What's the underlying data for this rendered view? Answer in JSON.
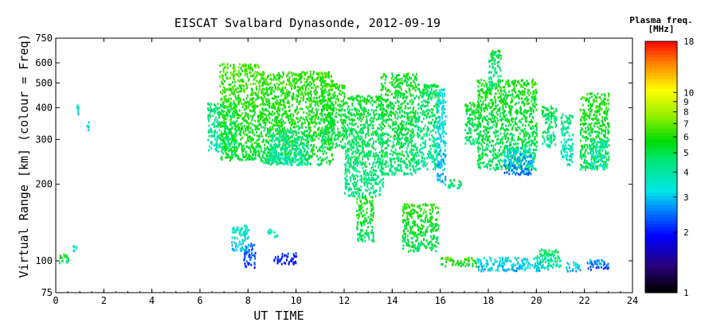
{
  "chart_data": {
    "type": "scatter",
    "title": "EISCAT Svalbard Dynasonde, 2012-09-19",
    "xlabel": "UT TIME",
    "ylabel": "Virtual Range [km] (colour = Freq)",
    "xlim": [
      0,
      24
    ],
    "ylim": [
      75,
      750
    ],
    "y_scale": "log",
    "x_ticks": [
      0,
      2,
      4,
      6,
      8,
      10,
      12,
      14,
      16,
      18,
      20,
      22,
      24
    ],
    "y_ticks": [
      75,
      100,
      200,
      300,
      400,
      500,
      600,
      750
    ],
    "colorbar": {
      "title_line1": "Plasma freq.",
      "title_line2": "[MHz]",
      "range": [
        1,
        18
      ],
      "scale": "log",
      "ticks": [
        1,
        2,
        3,
        4,
        5,
        6,
        7,
        8,
        9,
        10,
        18
      ]
    },
    "clusters": [
      {
        "t0": 0.05,
        "t1": 0.5,
        "r0": 98,
        "r1": 108,
        "f": 4.5
      },
      {
        "t0": 0.85,
        "t1": 0.95,
        "r0": 365,
        "r1": 420,
        "f": 3.0
      },
      {
        "t0": 1.25,
        "t1": 1.35,
        "r0": 330,
        "r1": 360,
        "f": 3.0
      },
      {
        "t0": 0.7,
        "t1": 0.85,
        "r0": 110,
        "r1": 118,
        "f": 3.3
      },
      {
        "t0": 6.3,
        "t1": 7.5,
        "r0": 270,
        "r1": 420,
        "f": 3.8
      },
      {
        "t0": 6.8,
        "t1": 8.5,
        "r0": 250,
        "r1": 600,
        "f": 5.2
      },
      {
        "t0": 7.3,
        "t1": 8.0,
        "r0": 110,
        "r1": 140,
        "f": 3.0
      },
      {
        "t0": 7.8,
        "t1": 8.3,
        "r0": 95,
        "r1": 118,
        "f": 2.0
      },
      {
        "t0": 8.5,
        "t1": 11.5,
        "r0": 240,
        "r1": 560,
        "f": 5.0
      },
      {
        "t0": 8.8,
        "t1": 10.5,
        "r0": 240,
        "r1": 330,
        "f": 3.6
      },
      {
        "t0": 9.0,
        "t1": 10.0,
        "r0": 98,
        "r1": 108,
        "f": 1.8
      },
      {
        "t0": 8.8,
        "t1": 9.2,
        "r0": 125,
        "r1": 135,
        "f": 3.3
      },
      {
        "t0": 11.0,
        "t1": 12.0,
        "r0": 280,
        "r1": 500,
        "f": 4.8
      },
      {
        "t0": 12.0,
        "t1": 13.6,
        "r0": 180,
        "r1": 450,
        "f": 4.2
      },
      {
        "t0": 12.5,
        "t1": 13.2,
        "r0": 120,
        "r1": 180,
        "f": 4.6
      },
      {
        "t0": 13.5,
        "t1": 15.0,
        "r0": 220,
        "r1": 550,
        "f": 4.5
      },
      {
        "t0": 15.0,
        "t1": 15.9,
        "r0": 230,
        "r1": 500,
        "f": 4.0
      },
      {
        "t0": 14.4,
        "t1": 15.9,
        "r0": 110,
        "r1": 170,
        "f": 4.8
      },
      {
        "t0": 15.8,
        "t1": 16.2,
        "r0": 200,
        "r1": 480,
        "f": 2.8
      },
      {
        "t0": 16.0,
        "t1": 17.5,
        "r0": 96,
        "r1": 104,
        "f": 5.2
      },
      {
        "t0": 16.3,
        "t1": 16.9,
        "r0": 195,
        "r1": 210,
        "f": 4.2
      },
      {
        "t0": 17.0,
        "t1": 17.6,
        "r0": 290,
        "r1": 430,
        "f": 4.5
      },
      {
        "t0": 17.5,
        "t1": 20.0,
        "r0": 230,
        "r1": 520,
        "f": 4.6
      },
      {
        "t0": 18.0,
        "t1": 18.5,
        "r0": 480,
        "r1": 680,
        "f": 4.2
      },
      {
        "t0": 18.6,
        "t1": 19.8,
        "r0": 220,
        "r1": 280,
        "f": 2.5
      },
      {
        "t0": 17.5,
        "t1": 20.5,
        "r0": 92,
        "r1": 104,
        "f": 2.8
      },
      {
        "t0": 20.0,
        "t1": 21.0,
        "r0": 94,
        "r1": 112,
        "f": 3.8
      },
      {
        "t0": 21.2,
        "t1": 21.8,
        "r0": 92,
        "r1": 100,
        "f": 2.8
      },
      {
        "t0": 22.0,
        "t1": 23.0,
        "r0": 93,
        "r1": 102,
        "f": 2.2
      },
      {
        "t0": 21.8,
        "t1": 23.0,
        "r0": 230,
        "r1": 460,
        "f": 4.8
      },
      {
        "t0": 22.2,
        "t1": 22.9,
        "r0": 230,
        "r1": 300,
        "f": 3.3
      },
      {
        "t0": 21.0,
        "t1": 21.5,
        "r0": 240,
        "r1": 380,
        "f": 3.5
      },
      {
        "t0": 20.2,
        "t1": 20.8,
        "r0": 280,
        "r1": 410,
        "f": 4.0
      }
    ]
  }
}
